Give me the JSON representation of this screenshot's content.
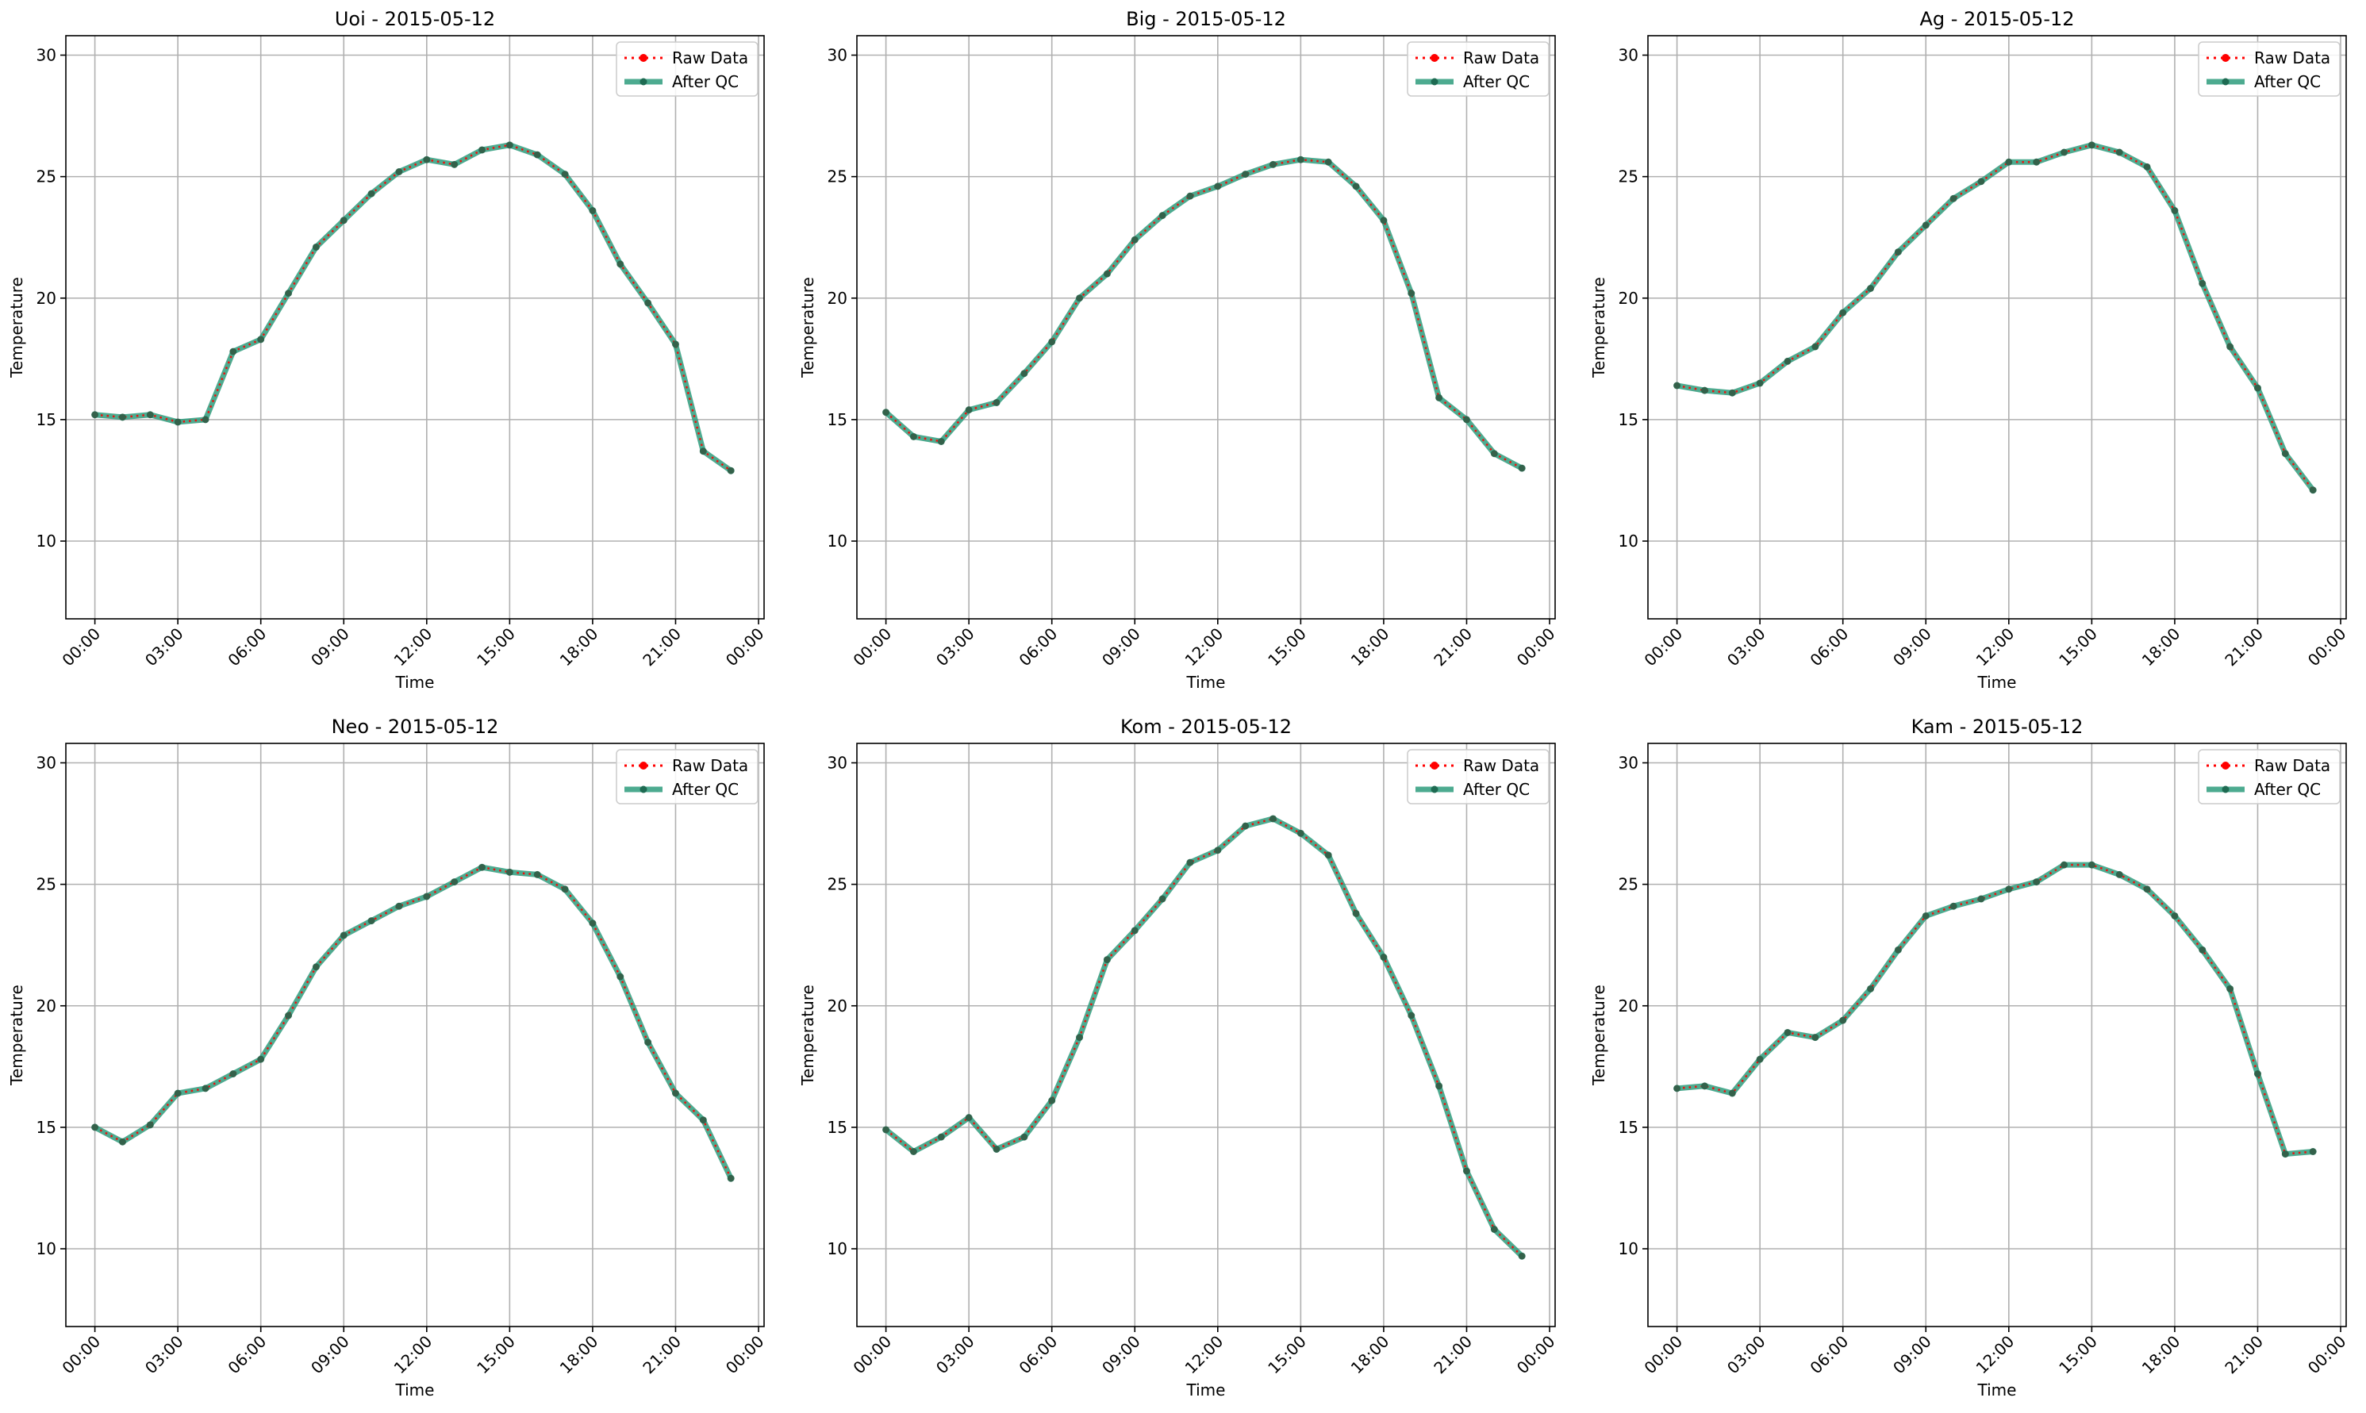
{
  "colors": {
    "raw": "#ff0000",
    "qc": "#2e9c7c",
    "qc_marker": "#1e6b52",
    "grid": "#b0b0b0",
    "axes": "#000000"
  },
  "chart_data": [
    {
      "type": "line",
      "title": "Uoi - 2015-05-12",
      "xlabel": "Time",
      "ylabel": "Temperature",
      "ylim": [
        6.8,
        30.8
      ],
      "yticks": [
        10,
        15,
        20,
        25,
        30
      ],
      "xlim": [
        -1.05,
        24.2
      ],
      "xticks": [
        "00:00",
        "03:00",
        "06:00",
        "09:00",
        "12:00",
        "15:00",
        "18:00",
        "21:00",
        "00:00"
      ],
      "grid": true,
      "legend_position": "top-right",
      "x": [
        "00:00",
        "01:00",
        "02:00",
        "03:00",
        "04:00",
        "05:00",
        "06:00",
        "07:00",
        "08:00",
        "09:00",
        "10:00",
        "11:00",
        "12:00",
        "13:00",
        "14:00",
        "15:00",
        "16:00",
        "17:00",
        "18:00",
        "19:00",
        "20:00",
        "21:00",
        "22:00",
        "23:00"
      ],
      "series": [
        {
          "name": "Raw Data",
          "style": "dotted",
          "values": [
            15.2,
            15.1,
            15.2,
            14.9,
            15.0,
            17.8,
            18.3,
            20.2,
            22.1,
            23.2,
            24.3,
            25.2,
            25.7,
            25.5,
            26.1,
            26.3,
            25.9,
            25.1,
            23.6,
            21.4,
            19.8,
            18.1,
            13.7,
            12.9
          ]
        },
        {
          "name": "After QC",
          "style": "solid",
          "values": [
            15.2,
            15.1,
            15.2,
            14.9,
            15.0,
            17.8,
            18.3,
            20.2,
            22.1,
            23.2,
            24.3,
            25.2,
            25.7,
            25.5,
            26.1,
            26.3,
            25.9,
            25.1,
            23.6,
            21.4,
            19.8,
            18.1,
            13.7,
            12.9
          ]
        }
      ]
    },
    {
      "type": "line",
      "title": "Big - 2015-05-12",
      "xlabel": "Time",
      "ylabel": "Temperature",
      "ylim": [
        6.8,
        30.8
      ],
      "yticks": [
        10,
        15,
        20,
        25,
        30
      ],
      "xlim": [
        -1.05,
        24.2
      ],
      "xticks": [
        "00:00",
        "03:00",
        "06:00",
        "09:00",
        "12:00",
        "15:00",
        "18:00",
        "21:00",
        "00:00"
      ],
      "grid": true,
      "legend_position": "top-right",
      "x": [
        "00:00",
        "01:00",
        "02:00",
        "03:00",
        "04:00",
        "05:00",
        "06:00",
        "07:00",
        "08:00",
        "09:00",
        "10:00",
        "11:00",
        "12:00",
        "13:00",
        "14:00",
        "15:00",
        "16:00",
        "17:00",
        "18:00",
        "19:00",
        "20:00",
        "21:00",
        "22:00",
        "23:00"
      ],
      "series": [
        {
          "name": "Raw Data",
          "style": "dotted",
          "values": [
            15.3,
            14.3,
            14.1,
            15.4,
            15.7,
            16.9,
            18.2,
            20.0,
            21.0,
            22.4,
            23.4,
            24.2,
            24.6,
            25.1,
            25.5,
            25.7,
            25.6,
            24.6,
            23.2,
            20.2,
            15.9,
            15.0,
            13.6,
            13.0
          ]
        },
        {
          "name": "After QC",
          "style": "solid",
          "values": [
            15.3,
            14.3,
            14.1,
            15.4,
            15.7,
            16.9,
            18.2,
            20.0,
            21.0,
            22.4,
            23.4,
            24.2,
            24.6,
            25.1,
            25.5,
            25.7,
            25.6,
            24.6,
            23.2,
            20.2,
            15.9,
            15.0,
            13.6,
            13.0
          ]
        }
      ]
    },
    {
      "type": "line",
      "title": "Ag - 2015-05-12",
      "xlabel": "Time",
      "ylabel": "Temperature",
      "ylim": [
        6.8,
        30.8
      ],
      "yticks": [
        10,
        15,
        20,
        25,
        30
      ],
      "xlim": [
        -1.05,
        24.2
      ],
      "xticks": [
        "00:00",
        "03:00",
        "06:00",
        "09:00",
        "12:00",
        "15:00",
        "18:00",
        "21:00",
        "00:00"
      ],
      "grid": true,
      "legend_position": "top-right",
      "x": [
        "00:00",
        "01:00",
        "02:00",
        "03:00",
        "04:00",
        "05:00",
        "06:00",
        "07:00",
        "08:00",
        "09:00",
        "10:00",
        "11:00",
        "12:00",
        "13:00",
        "14:00",
        "15:00",
        "16:00",
        "17:00",
        "18:00",
        "19:00",
        "20:00",
        "21:00",
        "22:00",
        "23:00"
      ],
      "series": [
        {
          "name": "Raw Data",
          "style": "dotted",
          "values": [
            16.4,
            16.2,
            16.1,
            16.5,
            17.4,
            18.0,
            19.4,
            20.4,
            21.9,
            23.0,
            24.1,
            24.8,
            25.6,
            25.6,
            26.0,
            26.3,
            26.0,
            25.4,
            23.6,
            20.6,
            18.0,
            16.3,
            13.6,
            12.1
          ]
        },
        {
          "name": "After QC",
          "style": "solid",
          "values": [
            16.4,
            16.2,
            16.1,
            16.5,
            17.4,
            18.0,
            19.4,
            20.4,
            21.9,
            23.0,
            24.1,
            24.8,
            25.6,
            25.6,
            26.0,
            26.3,
            26.0,
            25.4,
            23.6,
            20.6,
            18.0,
            16.3,
            13.6,
            12.1
          ]
        }
      ]
    },
    {
      "type": "line",
      "title": "Neo - 2015-05-12",
      "xlabel": "Time",
      "ylabel": "Temperature",
      "ylim": [
        6.8,
        30.8
      ],
      "yticks": [
        10,
        15,
        20,
        25,
        30
      ],
      "xlim": [
        -1.05,
        24.2
      ],
      "xticks": [
        "00:00",
        "03:00",
        "06:00",
        "09:00",
        "12:00",
        "15:00",
        "18:00",
        "21:00",
        "00:00"
      ],
      "grid": true,
      "legend_position": "top-right",
      "x": [
        "00:00",
        "01:00",
        "02:00",
        "03:00",
        "04:00",
        "05:00",
        "06:00",
        "07:00",
        "08:00",
        "09:00",
        "10:00",
        "11:00",
        "12:00",
        "13:00",
        "14:00",
        "15:00",
        "16:00",
        "17:00",
        "18:00",
        "19:00",
        "20:00",
        "21:00",
        "22:00",
        "23:00"
      ],
      "series": [
        {
          "name": "Raw Data",
          "style": "dotted",
          "values": [
            15.0,
            14.4,
            15.1,
            16.4,
            16.6,
            17.2,
            17.8,
            19.6,
            21.6,
            22.9,
            23.5,
            24.1,
            24.5,
            25.1,
            25.7,
            25.5,
            25.4,
            24.8,
            23.4,
            21.2,
            18.5,
            16.4,
            15.3,
            12.9
          ]
        },
        {
          "name": "After QC",
          "style": "solid",
          "values": [
            15.0,
            14.4,
            15.1,
            16.4,
            16.6,
            17.2,
            17.8,
            19.6,
            21.6,
            22.9,
            23.5,
            24.1,
            24.5,
            25.1,
            25.7,
            25.5,
            25.4,
            24.8,
            23.4,
            21.2,
            18.5,
            16.4,
            15.3,
            12.9
          ]
        }
      ]
    },
    {
      "type": "line",
      "title": "Kom - 2015-05-12",
      "xlabel": "Time",
      "ylabel": "Temperature",
      "ylim": [
        6.8,
        30.8
      ],
      "yticks": [
        10,
        15,
        20,
        25,
        30
      ],
      "xlim": [
        -1.05,
        24.2
      ],
      "xticks": [
        "00:00",
        "03:00",
        "06:00",
        "09:00",
        "12:00",
        "15:00",
        "18:00",
        "21:00",
        "00:00"
      ],
      "grid": true,
      "legend_position": "top-right",
      "x": [
        "00:00",
        "01:00",
        "02:00",
        "03:00",
        "04:00",
        "05:00",
        "06:00",
        "07:00",
        "08:00",
        "09:00",
        "10:00",
        "11:00",
        "12:00",
        "13:00",
        "14:00",
        "15:00",
        "16:00",
        "17:00",
        "18:00",
        "19:00",
        "20:00",
        "21:00",
        "22:00",
        "23:00"
      ],
      "series": [
        {
          "name": "Raw Data",
          "style": "dotted",
          "values": [
            14.9,
            14.0,
            14.6,
            15.4,
            14.1,
            14.6,
            16.1,
            18.7,
            21.9,
            23.1,
            24.4,
            25.9,
            26.4,
            27.4,
            27.7,
            27.1,
            26.2,
            23.8,
            22.0,
            19.6,
            16.7,
            13.2,
            10.8,
            9.7
          ]
        },
        {
          "name": "After QC",
          "style": "solid",
          "values": [
            14.9,
            14.0,
            14.6,
            15.4,
            14.1,
            14.6,
            16.1,
            18.7,
            21.9,
            23.1,
            24.4,
            25.9,
            26.4,
            27.4,
            27.7,
            27.1,
            26.2,
            23.8,
            22.0,
            19.6,
            16.7,
            13.2,
            10.8,
            9.7
          ]
        }
      ]
    },
    {
      "type": "line",
      "title": "Kam - 2015-05-12",
      "xlabel": "Time",
      "ylabel": "Temperature",
      "ylim": [
        6.8,
        30.8
      ],
      "yticks": [
        10,
        15,
        20,
        25,
        30
      ],
      "xlim": [
        -1.05,
        24.2
      ],
      "xticks": [
        "00:00",
        "03:00",
        "06:00",
        "09:00",
        "12:00",
        "15:00",
        "18:00",
        "21:00",
        "00:00"
      ],
      "grid": true,
      "legend_position": "top-right",
      "x": [
        "00:00",
        "01:00",
        "02:00",
        "03:00",
        "04:00",
        "05:00",
        "06:00",
        "07:00",
        "08:00",
        "09:00",
        "10:00",
        "11:00",
        "12:00",
        "13:00",
        "14:00",
        "15:00",
        "16:00",
        "17:00",
        "18:00",
        "19:00",
        "20:00",
        "21:00",
        "22:00",
        "23:00"
      ],
      "series": [
        {
          "name": "Raw Data",
          "style": "dotted",
          "values": [
            16.6,
            16.7,
            16.4,
            17.8,
            18.9,
            18.7,
            19.4,
            20.7,
            22.3,
            23.7,
            24.1,
            24.4,
            24.8,
            25.1,
            25.8,
            25.8,
            25.4,
            24.8,
            23.7,
            22.3,
            20.7,
            17.2,
            13.9,
            14.0
          ]
        },
        {
          "name": "After QC",
          "style": "solid",
          "values": [
            16.6,
            16.7,
            16.4,
            17.8,
            18.9,
            18.7,
            19.4,
            20.7,
            22.3,
            23.7,
            24.1,
            24.4,
            24.8,
            25.1,
            25.8,
            25.8,
            25.4,
            24.8,
            23.7,
            22.3,
            20.7,
            17.2,
            13.9,
            14.0
          ]
        }
      ]
    }
  ]
}
